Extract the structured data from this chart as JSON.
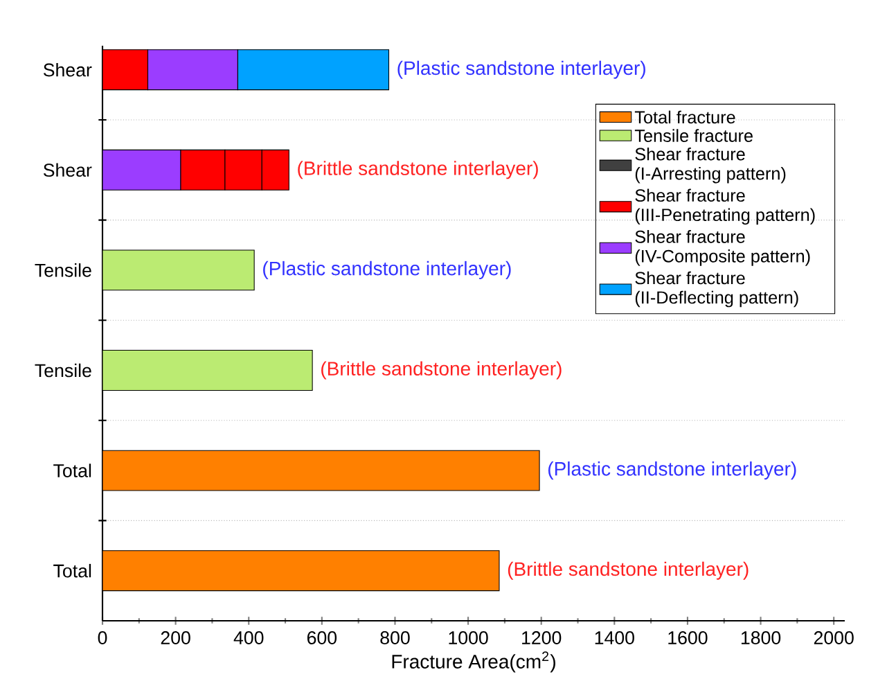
{
  "chart_data": {
    "type": "bar",
    "orientation": "horizontal",
    "stacked": true,
    "xlabel": "Fracture Area(cm$^{2}$)",
    "categories": [
      "Shear",
      "Shear",
      "Tensile",
      "Tensile",
      "Total",
      "Total"
    ],
    "series": [
      {
        "name": "Total fracture",
        "color": "#ff8000",
        "values": [
          null,
          null,
          null,
          null,
          1195,
          1085
        ]
      },
      {
        "name": "Tensile fracture",
        "color": "#bbeb72",
        "values": [
          null,
          null,
          415,
          574,
          null,
          null
        ]
      },
      {
        "name": "Shear fracture (I-Arresting pattern)",
        "color": "#404040",
        "values": [
          null,
          null,
          null,
          null,
          null,
          null
        ]
      },
      {
        "name": "Shear fracture (III-Penetrating pattern)",
        "color": "#ff0000",
        "values": [
          124,
          null,
          null,
          null,
          null,
          null
        ]
      },
      {
        "name": "Shear fracture (IV-Composite pattern)",
        "color": "#9b3dff",
        "values": [
          246,
          214,
          null,
          null,
          null,
          null
        ]
      },
      {
        "name": "Shear fracture (II-Deflecting pattern)",
        "color": "#00a2ff",
        "values": [
          413,
          null,
          null,
          null,
          null,
          null
        ]
      },
      {
        "color": "#ff0000",
        "values": [
          null,
          121,
          null,
          null,
          null,
          null
        ]
      },
      {
        "color": "#ff0000",
        "values": [
          null,
          101,
          null,
          null,
          null,
          null
        ]
      },
      {
        "color": "#ff0000",
        "values": [
          null,
          74,
          null,
          null,
          null,
          null
        ]
      }
    ],
    "xlim": [
      0,
      2030
    ],
    "xticks": [
      0,
      200,
      400,
      600,
      800,
      1000,
      1200,
      1400,
      1600,
      1800,
      2000
    ],
    "grid": "y",
    "legend": "top right",
    "annotations": [
      "(Plastic sandstone interlayer)",
      "(Brittle sandstone interlayer)",
      "(Plastic sandstone interlayer)",
      "(Brittle sandstone interlayer)",
      "(Plastic sandstone interlayer)",
      "(Brittle sandstone interlayer)"
    ]
  }
}
